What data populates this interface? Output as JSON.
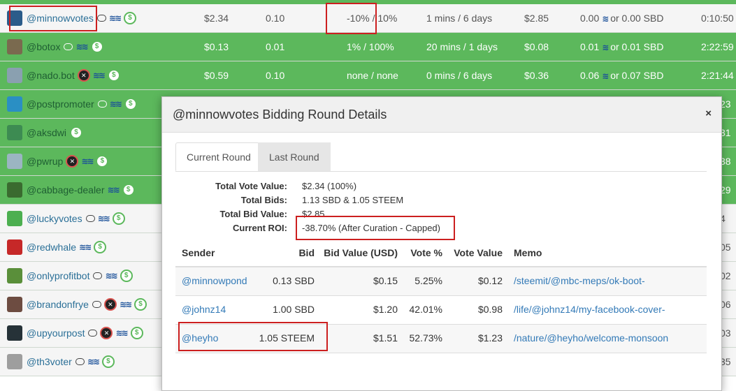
{
  "bots": [
    {
      "name": "@minnowvotes",
      "chat": true,
      "no_comment": false,
      "steem": true,
      "dollar": true,
      "price": "$2.34",
      "min_bid": "0.10",
      "pct": "-10% / 10%",
      "time": "1 mins / 6 days",
      "value": "$2.85",
      "min_steem": "0.00",
      "min_sbd": "0.00 SBD",
      "end": "0:10:50",
      "style": "first",
      "avatar_color": "#2b5c8a"
    },
    {
      "name": "@botox",
      "chat": true,
      "no_comment": false,
      "steem": true,
      "dollar": true,
      "price": "$0.13",
      "min_bid": "0.01",
      "pct": "1% / 100%",
      "time": "20 mins / 1 days",
      "value": "$0.08",
      "min_steem": "0.01",
      "min_sbd": "0.01 SBD",
      "end": "2:22:59",
      "style": "green",
      "avatar_color": "#7a6a4f"
    },
    {
      "name": "@nado.bot",
      "chat": false,
      "no_comment": true,
      "steem": true,
      "dollar": true,
      "price": "$0.59",
      "min_bid": "0.10",
      "pct": "none / none",
      "time": "0 mins / 6 days",
      "value": "$0.36",
      "min_steem": "0.06",
      "min_sbd": "0.07 SBD",
      "end": "2:21:44",
      "style": "green",
      "avatar_color": "#8aa0b0"
    },
    {
      "name": "@postpromoter",
      "chat": true,
      "no_comment": false,
      "steem": true,
      "dollar": true,
      "price": "",
      "min_bid": "",
      "pct": "",
      "time": "",
      "value": "",
      "min_steem": "",
      "min_sbd": "",
      "end": "23",
      "style": "green",
      "avatar_color": "#2a8fc4"
    },
    {
      "name": "@aksdwi",
      "chat": false,
      "no_comment": false,
      "steem": false,
      "dollar": true,
      "price": "",
      "min_bid": "",
      "pct": "",
      "time": "",
      "value": "",
      "min_steem": "",
      "min_sbd": "",
      "end": "31",
      "style": "green",
      "avatar_color": "#3d8b52"
    },
    {
      "name": "@pwrup",
      "chat": false,
      "no_comment": true,
      "steem": true,
      "dollar": true,
      "price": "",
      "min_bid": "",
      "pct": "",
      "time": "",
      "value": "",
      "min_steem": "",
      "min_sbd": "",
      "end": "38",
      "style": "green",
      "avatar_color": "#9bb5c2"
    },
    {
      "name": "@cabbage-dealer",
      "chat": false,
      "no_comment": false,
      "steem": true,
      "dollar": true,
      "price": "",
      "min_bid": "",
      "pct": "",
      "time": "",
      "value": "",
      "min_steem": "",
      "min_sbd": "",
      "end": "29",
      "style": "green",
      "avatar_color": "#3a6b2f"
    },
    {
      "name": "@luckyvotes",
      "chat": true,
      "no_comment": false,
      "steem": true,
      "dollar": true,
      "price": "",
      "min_bid": "",
      "pct": "",
      "time": "",
      "value": "",
      "min_steem": "",
      "min_sbd": "",
      "end": "4",
      "style": "white",
      "avatar_color": "#4caf50"
    },
    {
      "name": "@redwhale",
      "chat": false,
      "no_comment": false,
      "steem": true,
      "dollar": true,
      "price": "",
      "min_bid": "",
      "pct": "",
      "time": "",
      "value": "",
      "min_steem": "",
      "min_sbd": "",
      "end": "05",
      "style": "white",
      "avatar_color": "#c62828"
    },
    {
      "name": "@onlyprofitbot",
      "chat": true,
      "no_comment": false,
      "steem": true,
      "dollar": true,
      "price": "",
      "min_bid": "",
      "pct": "",
      "time": "",
      "value": "",
      "min_steem": "",
      "min_sbd": "",
      "end": "02",
      "style": "white",
      "avatar_color": "#5a8f3a"
    },
    {
      "name": "@brandonfrye",
      "chat": true,
      "no_comment": true,
      "steem": true,
      "dollar": true,
      "price": "",
      "min_bid": "",
      "pct": "",
      "time": "",
      "value": "",
      "min_steem": "",
      "min_sbd": "",
      "end": "06",
      "style": "white",
      "avatar_color": "#6d4c41"
    },
    {
      "name": "@upyourpost",
      "chat": true,
      "no_comment": true,
      "steem": true,
      "dollar": true,
      "price": "",
      "min_bid": "",
      "pct": "",
      "time": "",
      "value": "",
      "min_steem": "",
      "min_sbd": "",
      "end": "03",
      "style": "white",
      "avatar_color": "#263238"
    },
    {
      "name": "@th3voter",
      "chat": true,
      "no_comment": false,
      "steem": true,
      "dollar": true,
      "price": "",
      "min_bid": "",
      "pct": "",
      "time": "",
      "value": "",
      "min_steem": "",
      "min_sbd": "",
      "end": "35",
      "style": "white",
      "avatar_color": "#9e9e9e"
    }
  ],
  "bot_row_or": "or",
  "modal": {
    "title": "@minnowvotes Bidding Round Details",
    "close": "×",
    "tabs": [
      "Current Round",
      "Last Round"
    ],
    "summary": [
      {
        "label": "Total Vote Value:",
        "value": "$2.34 (100%)"
      },
      {
        "label": "Total Bids:",
        "value": "1.13 SBD & 1.05 STEEM"
      },
      {
        "label": "Total Bid Value:",
        "value": "$2.85"
      },
      {
        "label": "Current ROI:",
        "value": "-38.70% (After Curation - Capped)"
      }
    ],
    "bid_headers": {
      "sender": "Sender",
      "bid": "Bid",
      "bid_value": "Bid Value (USD)",
      "vote_pct": "Vote %",
      "vote_value": "Vote Value",
      "memo": "Memo"
    },
    "bids": [
      {
        "sender": "@minnowpond",
        "bid": "0.13 SBD",
        "bid_value": "$0.15",
        "vote_pct": "5.25%",
        "vote_value": "$0.12",
        "memo": "/steemit/@mbc-meps/ok-boot-"
      },
      {
        "sender": "@johnz14",
        "bid": "1.00 SBD",
        "bid_value": "$1.20",
        "vote_pct": "42.01%",
        "vote_value": "$0.98",
        "memo": "/life/@johnz14/my-facebook-cover-"
      },
      {
        "sender": "@heyho",
        "bid": "1.05 STEEM",
        "bid_value": "$1.51",
        "vote_pct": "52.73%",
        "vote_value": "$1.23",
        "memo": "/nature/@heyho/welcome-monsoon"
      }
    ]
  },
  "colors": {
    "green_row": "#5cb85c",
    "highlight": "#cc1f1f",
    "link": "#337ab7"
  }
}
